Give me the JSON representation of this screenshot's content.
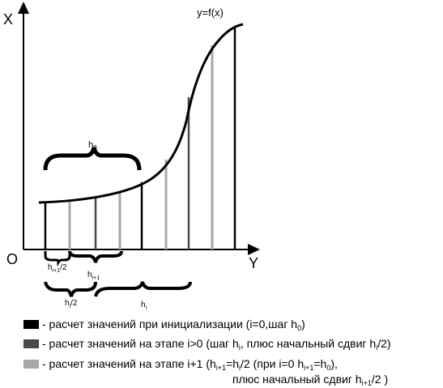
{
  "axes": {
    "vertical_label": "X",
    "horizontal_label": "Y",
    "origin_label": "O",
    "curve_label": "y=f(x)"
  },
  "braces": {
    "h0": {
      "base": "h",
      "sub": "0"
    },
    "h_i1_half": {
      "base": "h",
      "sub": "i+1",
      "suffix": "/2"
    },
    "h_i1": {
      "base": "h",
      "sub": "i+1"
    },
    "h_i_half": {
      "base": "h",
      "sub": "i",
      "suffix": "/2"
    },
    "h_i": {
      "base": "h",
      "sub": "i"
    }
  },
  "colors": {
    "init": "#000000",
    "stage_i": "#4a4a4a",
    "stage_i1": "#a8a8a8"
  },
  "legend": {
    "row1": {
      "text1": "- расчет значений при инициализации (i=0,шаг h",
      "sub1": "0",
      "text2": ")"
    },
    "row2": {
      "text1": "- расчет значений на этапе i>0 (шаг h",
      "sub1": "i",
      "text2": ", плюс начальный сдвиг h",
      "sub2": "i",
      "text3": "/2)"
    },
    "row3": {
      "text1": "- расчет значений на этапе i+1 (h",
      "sub1": "i+1",
      "text2": "=h",
      "sub2": "i",
      "text3": "/2 (при i=0 h",
      "sub3": "i+1",
      "text4": "=h",
      "sub4": "0",
      "text5": "),"
    },
    "row3b": {
      "text1": "плюс начальный сдвиг h",
      "sub1": "i+1",
      "text2": "/2 )"
    }
  }
}
